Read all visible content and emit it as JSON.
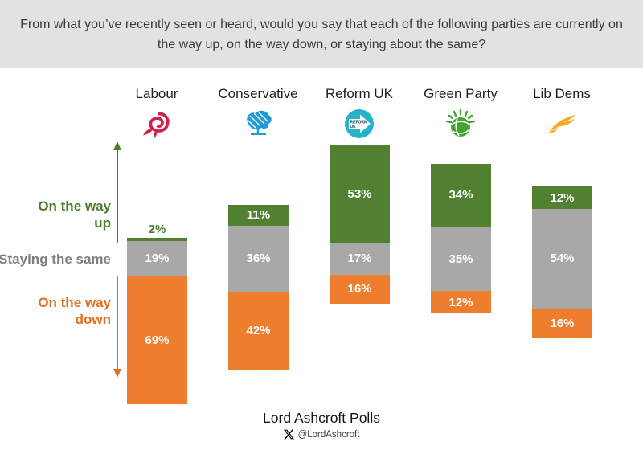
{
  "banner": {
    "question": "From what you’ve recently seen or heard, would you say that each of the following parties are currently on the way up, on the way down, or staying about the same?"
  },
  "chart_data": {
    "type": "bar",
    "variant": "stacked-column-centered-on-middle-segment",
    "categories": [
      "Labour",
      "Conservative",
      "Reform UK",
      "Green Party",
      "Lib Dems"
    ],
    "series": [
      {
        "key": "up",
        "name": "On the way up",
        "values": [
          2,
          11,
          53,
          34,
          12
        ]
      },
      {
        "key": "same",
        "name": "Staying the same",
        "values": [
          19,
          36,
          17,
          35,
          54
        ]
      },
      {
        "key": "down",
        "name": "On the way down",
        "values": [
          69,
          42,
          16,
          12,
          16
        ]
      }
    ],
    "value_suffix": "%",
    "legend_position": "left",
    "grid": false,
    "axes_shown": false
  },
  "parties": [
    {
      "icon": "labour-rose-icon",
      "color": "#d0214a"
    },
    {
      "icon": "conservative-tree-icon",
      "color": "#1e9cd7"
    },
    {
      "icon": "reform-uk-arrow-icon",
      "color": "#27b2cb",
      "secondary_color": "#12344d",
      "icon_text_line1": "REFORM",
      "icon_text_line2": "UK"
    },
    {
      "icon": "green-party-globe-icon",
      "color": "#46a233"
    },
    {
      "icon": "lib-dems-bird-icon",
      "color": "#f3a81d"
    }
  ],
  "colors": {
    "up_bar": "#518030",
    "same_bar": "#a8a8a8",
    "down_bar": "#ee7d2e",
    "up_label": "#4e7d31",
    "same_label": "#7f7f7f",
    "down_label": "#e0701f",
    "banner_background": "#e2e2e1",
    "question_text": "#3a3a3a",
    "segment_value_text": "#ffffff",
    "x_logo": "#000000"
  },
  "footer": {
    "source": "Lord Ashcroft Polls",
    "x_handle": "@LordAshcroft",
    "icon": "x-logo-icon"
  }
}
